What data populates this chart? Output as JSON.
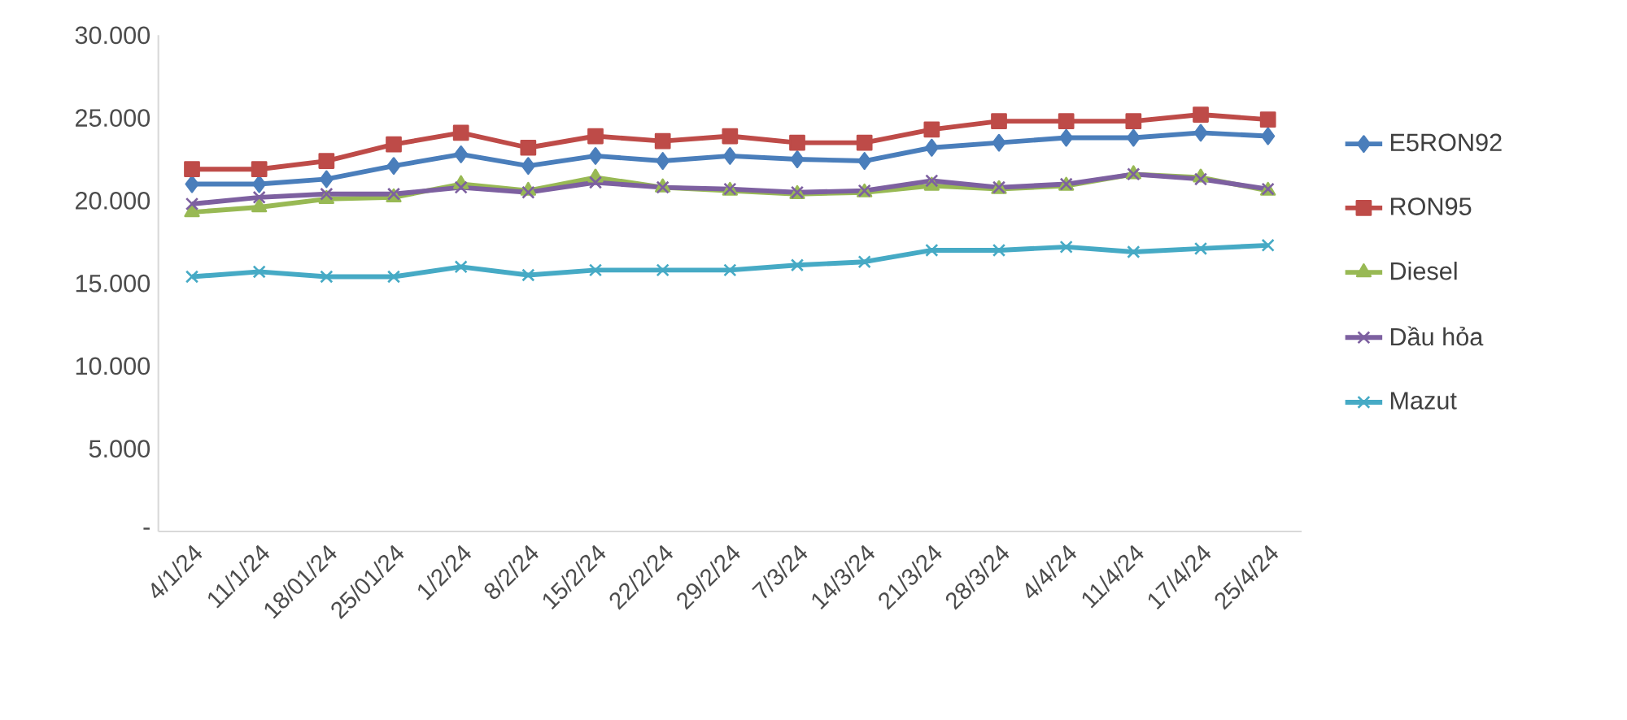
{
  "chart_data": {
    "type": "line",
    "categories": [
      "4/1/24",
      "11/1/24",
      "18/01/24",
      "25/01/24",
      "1/2/24",
      "8/2/24",
      "15/2/24",
      "22/2/24",
      "29/2/24",
      "7/3/24",
      "14/3/24",
      "21/3/24",
      "28/3/24",
      "4/4/24",
      "11/4/24",
      "17/4/24",
      "25/4/24"
    ],
    "series": [
      {
        "name": "E5RON92",
        "color": "#4a7ebb",
        "marker": "diamond",
        "values": [
          21000,
          21000,
          21300,
          22100,
          22800,
          22100,
          22700,
          22400,
          22700,
          22500,
          22400,
          23200,
          23500,
          23800,
          23800,
          24100,
          23900
        ]
      },
      {
        "name": "RON95",
        "color": "#be4b48",
        "marker": "square",
        "values": [
          21900,
          21900,
          22400,
          23400,
          24100,
          23200,
          23900,
          23600,
          23900,
          23500,
          23500,
          24300,
          24800,
          24800,
          24800,
          25200,
          24900
        ]
      },
      {
        "name": "Diesel",
        "color": "#98b954",
        "marker": "triangle",
        "values": [
          19300,
          19600,
          20100,
          20200,
          21000,
          20600,
          21400,
          20800,
          20600,
          20400,
          20500,
          20900,
          20700,
          20900,
          21600,
          21400,
          20600
        ]
      },
      {
        "name": "Dầu hỏa",
        "color": "#7d60a0",
        "marker": "cross",
        "values": [
          19800,
          20200,
          20400,
          20400,
          20800,
          20500,
          21100,
          20800,
          20700,
          20500,
          20600,
          21200,
          20800,
          21000,
          21600,
          21300,
          20700
        ]
      },
      {
        "name": "Mazut",
        "color": "#46aac5",
        "marker": "cross",
        "values": [
          15400,
          15700,
          15400,
          15400,
          16000,
          15500,
          15800,
          15800,
          15800,
          16100,
          16300,
          17000,
          17000,
          17200,
          16900,
          17100,
          17300
        ]
      }
    ],
    "ylim": [
      0,
      30000
    ],
    "yticks": [
      {
        "value": 0,
        "label": "-"
      },
      {
        "value": 5000,
        "label": "5.000"
      },
      {
        "value": 10000,
        "label": "10.000"
      },
      {
        "value": 15000,
        "label": "15.000"
      },
      {
        "value": 20000,
        "label": "20.000"
      },
      {
        "value": 25000,
        "label": "25.000"
      },
      {
        "value": 30000,
        "label": "30.000"
      }
    ],
    "legend": "right"
  }
}
